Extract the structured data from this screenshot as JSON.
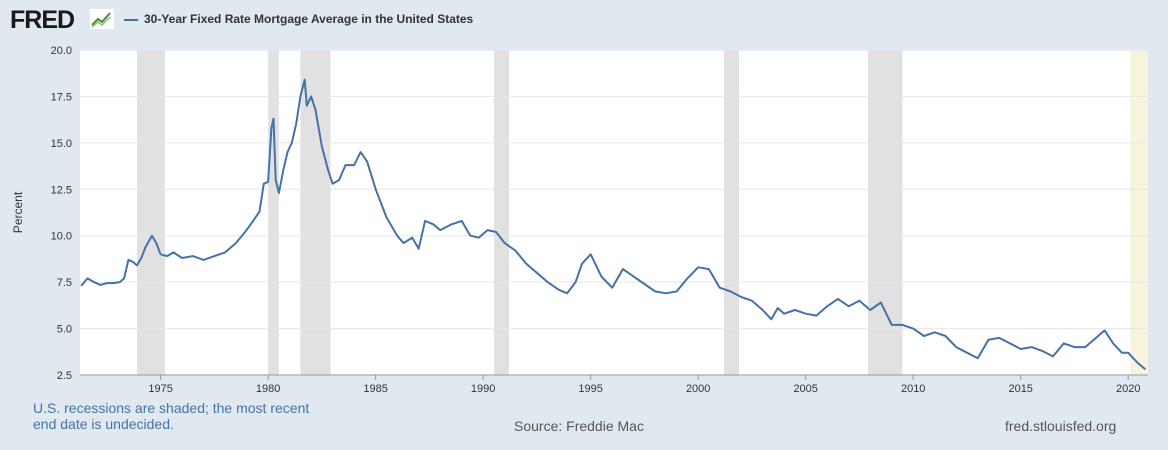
{
  "header": {
    "logo_text": "FRED",
    "legend_label": "30-Year Fixed Rate Mortgage Average in the United States"
  },
  "footer": {
    "note": "U.S. recessions are shaded; the most recent end date is undecided.",
    "source": "Source: Freddie Mac",
    "site": "fred.stlouisfed.org"
  },
  "colors": {
    "line": "#4572a7",
    "recession": "#e1e1e1",
    "undecided": "#f6f4dc",
    "background": "#e1e9f0"
  },
  "chart_data": {
    "type": "line",
    "title": "30-Year Fixed Rate Mortgage Average in the United States",
    "xlabel": "",
    "ylabel": "Percent",
    "xlim": [
      1971.25,
      2020.92
    ],
    "ylim": [
      2.5,
      20.0
    ],
    "x_ticks": [
      1975,
      1980,
      1985,
      1990,
      1995,
      2000,
      2005,
      2010,
      2015,
      2020
    ],
    "y_ticks": [
      "2.5",
      "5.0",
      "7.5",
      "10.0",
      "12.5",
      "15.0",
      "17.5",
      "20.0"
    ],
    "grid": true,
    "recessions": [
      [
        1973.9,
        1975.2
      ],
      [
        1980.0,
        1980.5
      ],
      [
        1981.5,
        1982.9
      ],
      [
        1990.5,
        1991.2
      ],
      [
        2001.2,
        2001.9
      ],
      [
        2007.9,
        2009.5
      ],
      [
        2020.1,
        2020.92
      ]
    ],
    "recession_undecided": [
      2020.1,
      2020.92
    ],
    "series": [
      {
        "name": "30-Year Fixed Rate Mortgage Average in the United States",
        "x": [
          1971.3,
          1971.6,
          1971.9,
          1972.2,
          1972.5,
          1972.8,
          1973.1,
          1973.3,
          1973.5,
          1973.7,
          1973.9,
          1974.1,
          1974.3,
          1974.6,
          1974.8,
          1975.0,
          1975.3,
          1975.6,
          1976.0,
          1976.5,
          1977.0,
          1977.5,
          1978.0,
          1978.5,
          1979.0,
          1979.3,
          1979.6,
          1979.8,
          1980.0,
          1980.15,
          1980.25,
          1980.35,
          1980.5,
          1980.7,
          1980.9,
          1981.1,
          1981.3,
          1981.5,
          1981.7,
          1981.8,
          1982.0,
          1982.2,
          1982.5,
          1982.8,
          1983.0,
          1983.3,
          1983.6,
          1984.0,
          1984.3,
          1984.6,
          1985.0,
          1985.5,
          1986.0,
          1986.3,
          1986.7,
          1987.0,
          1987.3,
          1987.7,
          1988.0,
          1988.5,
          1989.0,
          1989.4,
          1989.8,
          1990.2,
          1990.6,
          1991.0,
          1991.5,
          1992.0,
          1992.5,
          1993.0,
          1993.5,
          1993.9,
          1994.3,
          1994.6,
          1995.0,
          1995.5,
          1996.0,
          1996.5,
          1997.0,
          1997.5,
          1998.0,
          1998.5,
          1999.0,
          1999.5,
          2000.0,
          2000.5,
          2001.0,
          2001.5,
          2002.0,
          2002.5,
          2003.0,
          2003.4,
          2003.7,
          2004.0,
          2004.5,
          2005.0,
          2005.5,
          2006.0,
          2006.5,
          2007.0,
          2007.5,
          2008.0,
          2008.5,
          2009.0,
          2009.5,
          2010.0,
          2010.5,
          2011.0,
          2011.5,
          2012.0,
          2012.5,
          2013.0,
          2013.5,
          2014.0,
          2014.5,
          2015.0,
          2015.5,
          2016.0,
          2016.5,
          2017.0,
          2017.5,
          2018.0,
          2018.5,
          2018.9,
          2019.3,
          2019.7,
          2020.0,
          2020.4,
          2020.8
        ],
        "values": [
          7.3,
          7.7,
          7.5,
          7.35,
          7.45,
          7.45,
          7.5,
          7.7,
          8.7,
          8.6,
          8.4,
          8.8,
          9.4,
          10.0,
          9.6,
          9.0,
          8.9,
          9.1,
          8.8,
          8.9,
          8.7,
          8.9,
          9.1,
          9.6,
          10.3,
          10.8,
          11.3,
          12.8,
          12.9,
          15.8,
          16.3,
          13.0,
          12.3,
          13.5,
          14.5,
          15.0,
          16.0,
          17.5,
          18.4,
          17.0,
          17.5,
          16.8,
          14.8,
          13.5,
          12.8,
          13.0,
          13.8,
          13.8,
          14.5,
          14.0,
          12.5,
          11.0,
          10.0,
          9.6,
          9.9,
          9.3,
          10.8,
          10.6,
          10.3,
          10.6,
          10.8,
          10.0,
          9.9,
          10.3,
          10.2,
          9.6,
          9.2,
          8.5,
          8.0,
          7.5,
          7.1,
          6.9,
          7.5,
          8.5,
          9.0,
          7.8,
          7.2,
          8.2,
          7.8,
          7.4,
          7.0,
          6.9,
          7.0,
          7.7,
          8.3,
          8.2,
          7.2,
          7.0,
          6.7,
          6.5,
          6.0,
          5.5,
          6.1,
          5.8,
          6.0,
          5.8,
          5.7,
          6.2,
          6.6,
          6.2,
          6.5,
          6.0,
          6.4,
          5.2,
          5.2,
          5.0,
          4.6,
          4.8,
          4.6,
          4.0,
          3.7,
          3.4,
          4.4,
          4.5,
          4.2,
          3.9,
          4.0,
          3.8,
          3.5,
          4.2,
          4.0,
          4.0,
          4.5,
          4.9,
          4.2,
          3.7,
          3.7,
          3.2,
          2.8
        ]
      }
    ]
  }
}
